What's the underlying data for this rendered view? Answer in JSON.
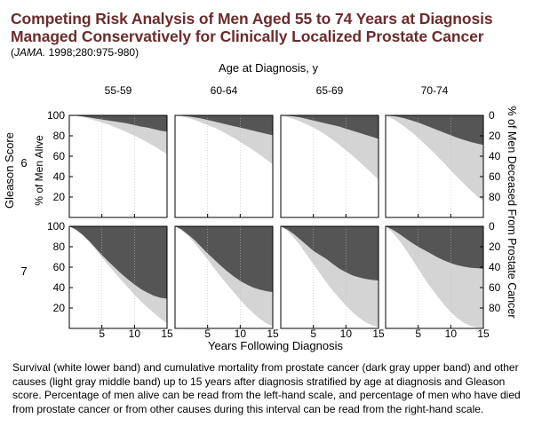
{
  "header": {
    "title_line1": "Competing Risk Analysis of Men Aged 55 to 74 Years at Diagnosis",
    "title_line2": "Managed Conservatively for Clinically Localized Prostate Cancer",
    "citation_journal": "JAMA.",
    "citation_rest": " 1998;280:975-980)",
    "citation_open": "("
  },
  "caption": "Survival (white lower band) and cumulative mortality from prostate cancer (dark gray upper band) and other causes (light gray middle band) up to 15 years after diagnosis stratified by age at diagnosis and Gleason score. Percentage of men alive can be read from the left-hand scale, and percentage of men who have died from prostate cancer or from other causes during this interval can be read from the right-hand scale.",
  "colors": {
    "dark": "#555555",
    "light": "#d4d4d4",
    "alive": "#ffffff",
    "title": "#6b2c2c"
  },
  "chart_data": {
    "type": "area",
    "top_label": "Age at Diagnosis, y",
    "xlabel": "Years Following Diagnosis",
    "ylabel_left": "% of Men Alive",
    "ylabel_right": "% of Men Deceased From Prostate Cancer",
    "row_axis_label": "Gleason Score",
    "columns": [
      "55-59",
      "60-64",
      "65-69",
      "70-74"
    ],
    "rows": [
      "6",
      "7"
    ],
    "xlim": [
      0,
      15
    ],
    "ylim": [
      0,
      100
    ],
    "x_ticks": [
      5,
      10,
      15
    ],
    "y_ticks_left": [
      20,
      40,
      60,
      80,
      100
    ],
    "y_ticks_right": [
      0,
      20,
      40,
      60,
      80
    ],
    "x": [
      0,
      1,
      2,
      3,
      4,
      5,
      6,
      7,
      8,
      9,
      10,
      11,
      12,
      13,
      14,
      15
    ],
    "panels": [
      {
        "row": "6",
        "column": "55-59",
        "prostate_cancer_deaths": [
          0,
          0.3,
          1,
          2,
          3,
          4,
          5,
          6,
          7,
          8,
          9.5,
          11,
          12,
          13.5,
          15,
          16
        ],
        "alive": [
          100,
          99.5,
          98.5,
          97,
          95,
          93,
          91,
          88.5,
          86,
          83,
          80,
          77,
          73.5,
          70,
          66,
          62
        ]
      },
      {
        "row": "6",
        "column": "60-64",
        "prostate_cancer_deaths": [
          0,
          0.4,
          1,
          2,
          3,
          4.5,
          6,
          7.5,
          9,
          10.5,
          12,
          13.5,
          15,
          16.5,
          18,
          19.5
        ],
        "alive": [
          100,
          99,
          97.5,
          95.5,
          93,
          90.5,
          88,
          85,
          81.5,
          78,
          74,
          70,
          66,
          61.5,
          57,
          52
        ]
      },
      {
        "row": "6",
        "column": "65-69",
        "prostate_cancer_deaths": [
          0,
          0.4,
          1,
          2,
          3.5,
          5,
          6.5,
          8,
          9.5,
          11,
          13,
          15,
          17,
          19,
          21,
          23
        ],
        "alive": [
          100,
          98.5,
          96.5,
          94,
          91,
          88,
          84.5,
          80.5,
          76,
          71,
          66,
          60.5,
          55,
          49,
          43,
          37
        ]
      },
      {
        "row": "6",
        "column": "70-74",
        "prostate_cancer_deaths": [
          0,
          0.5,
          1.5,
          3,
          5,
          7,
          9.5,
          12,
          14.5,
          17,
          19.5,
          22,
          24,
          26,
          27.5,
          29
        ],
        "alive": [
          100,
          97,
          93,
          88.5,
          83.5,
          78,
          72,
          66,
          59.5,
          53,
          46,
          39.5,
          33,
          27,
          21,
          16
        ]
      },
      {
        "row": "7",
        "column": "55-59",
        "prostate_cancer_deaths": [
          0,
          3,
          8,
          14,
          21,
          28,
          34.5,
          40.5,
          46.5,
          52,
          57,
          61.5,
          65,
          68,
          70,
          71
        ],
        "alive": [
          100,
          96.5,
          91.5,
          85,
          77.5,
          69.5,
          62,
          54.5,
          47,
          40,
          33,
          26.5,
          20.5,
          15,
          9.5,
          5
        ]
      },
      {
        "row": "7",
        "column": "60-64",
        "prostate_cancer_deaths": [
          0,
          3,
          8,
          13.5,
          20,
          26.5,
          32.5,
          38.5,
          44,
          49,
          53.5,
          57,
          60,
          62,
          63.5,
          64.5
        ],
        "alive": [
          100,
          96,
          90.5,
          83.5,
          75.5,
          67.5,
          59,
          51,
          43,
          35.5,
          28,
          21,
          15,
          9.5,
          5,
          2
        ]
      },
      {
        "row": "7",
        "column": "65-69",
        "prostate_cancer_deaths": [
          0,
          3,
          7.5,
          13,
          18.5,
          24,
          28,
          32,
          37,
          41.5,
          45,
          48,
          50,
          51.5,
          52.5,
          53
        ],
        "alive": [
          100,
          95.5,
          89,
          81,
          72,
          63,
          54,
          45,
          37,
          29.5,
          22.5,
          16,
          10.5,
          6,
          3,
          1.5
        ]
      },
      {
        "row": "7",
        "column": "70-74",
        "prostate_cancer_deaths": [
          0,
          3,
          7,
          11.5,
          16,
          20,
          23.5,
          27,
          30.5,
          33.5,
          36,
          38,
          39.5,
          40.5,
          41,
          41.5
        ],
        "alive": [
          100,
          94.5,
          87,
          78,
          68.5,
          58.5,
          48.5,
          39.5,
          31,
          23,
          16,
          10,
          5.5,
          2.5,
          1,
          0.5
        ]
      }
    ]
  }
}
